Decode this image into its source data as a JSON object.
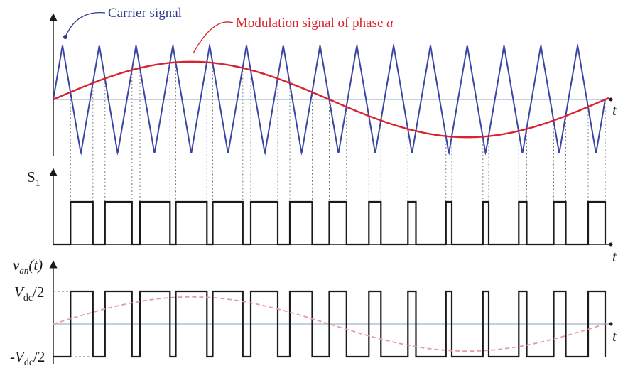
{
  "annotations": {
    "carrier_label": "Carrier signal",
    "modulation_label_prefix": "Modulation signal of phase ",
    "modulation_label_phase": "a"
  },
  "axes": {
    "s1_label_main": "S",
    "s1_label_sub": "1",
    "van_label_v": "v",
    "van_label_sub": "an",
    "van_label_arg": "(t)",
    "top_label": "Vdc/2",
    "bottom_label": "-Vdc/2",
    "end_label_1": "t",
    "end_label_2": "t",
    "end_label_3": "t"
  },
  "colors": {
    "carrier": "#3a46a0",
    "modulation": "#d8242f",
    "modulation_faint": "#e79aa0",
    "pulse": "#1a1a1a",
    "baseline": "#9fb4d0",
    "dashes": "#777777"
  },
  "chart_data": {
    "type": "line",
    "carrier_cycles": 15,
    "modulation_amplitude": 0.7,
    "modulation_phase_deg": 0,
    "modulation_periods": 1,
    "pwm_levels": [
      "-Vdc/2",
      "Vdc/2"
    ]
  }
}
